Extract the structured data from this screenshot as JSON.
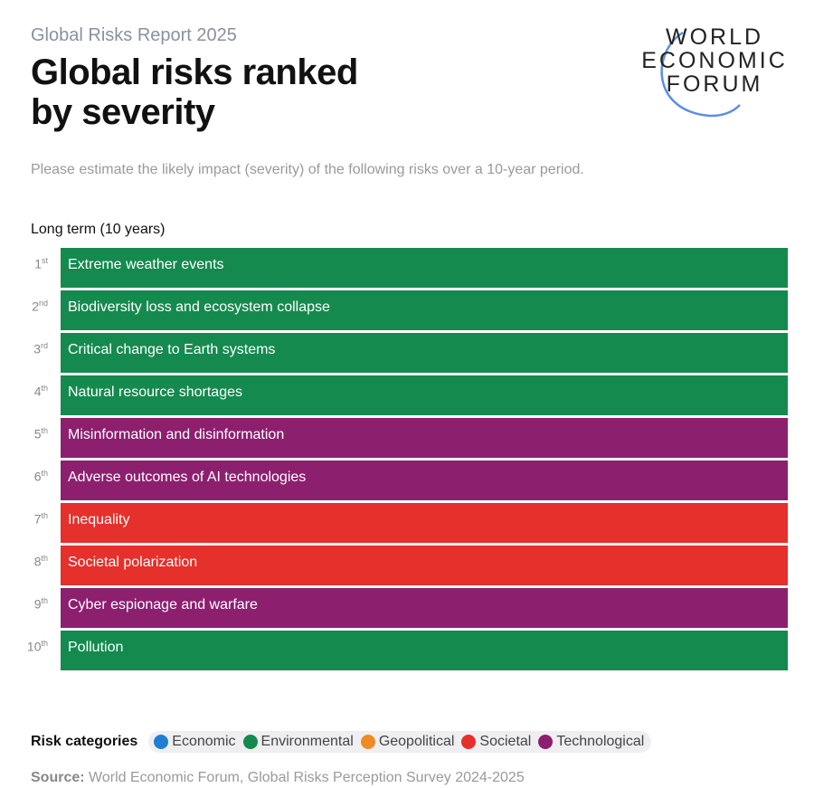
{
  "header": {
    "report": "Global Risks Report 2025",
    "title_line1": "Global risks ranked",
    "title_line2": "by severity",
    "logo_lines": [
      "WORLD",
      "ECONOMIC",
      "FORUM"
    ]
  },
  "question": "Please estimate the likely impact (severity) of the following risks over a 10-year period.",
  "colors": {
    "Economic": "#1f7fd1",
    "Environmental": "#148a4f",
    "Geopolitical": "#ef8a24",
    "Societal": "#e5302b",
    "Technological": "#8d1f6f"
  },
  "chart_data": {
    "type": "table",
    "title": "Long term (10 years)",
    "rows": [
      {
        "rank": "1",
        "suffix": "st",
        "label": "Extreme weather events",
        "category": "Environmental"
      },
      {
        "rank": "2",
        "suffix": "nd",
        "label": "Biodiversity loss and ecosystem collapse",
        "category": "Environmental"
      },
      {
        "rank": "3",
        "suffix": "rd",
        "label": "Critical change to Earth systems",
        "category": "Environmental"
      },
      {
        "rank": "4",
        "suffix": "th",
        "label": "Natural resource shortages",
        "category": "Environmental"
      },
      {
        "rank": "5",
        "suffix": "th",
        "label": "Misinformation and disinformation",
        "category": "Technological"
      },
      {
        "rank": "6",
        "suffix": "th",
        "label": "Adverse outcomes of AI technologies",
        "category": "Technological"
      },
      {
        "rank": "7",
        "suffix": "th",
        "label": "Inequality",
        "category": "Societal"
      },
      {
        "rank": "8",
        "suffix": "th",
        "label": "Societal polarization",
        "category": "Societal"
      },
      {
        "rank": "9",
        "suffix": "th",
        "label": "Cyber espionage and warfare",
        "category": "Technological"
      },
      {
        "rank": "10",
        "suffix": "th",
        "label": "Pollution",
        "category": "Environmental"
      }
    ]
  },
  "legend": {
    "label": "Risk categories",
    "items": [
      "Economic",
      "Environmental",
      "Geopolitical",
      "Societal",
      "Technological"
    ]
  },
  "source": {
    "label": "Source:",
    "text": " World Economic Forum, Global Risks Perception Survey 2024-2025"
  }
}
